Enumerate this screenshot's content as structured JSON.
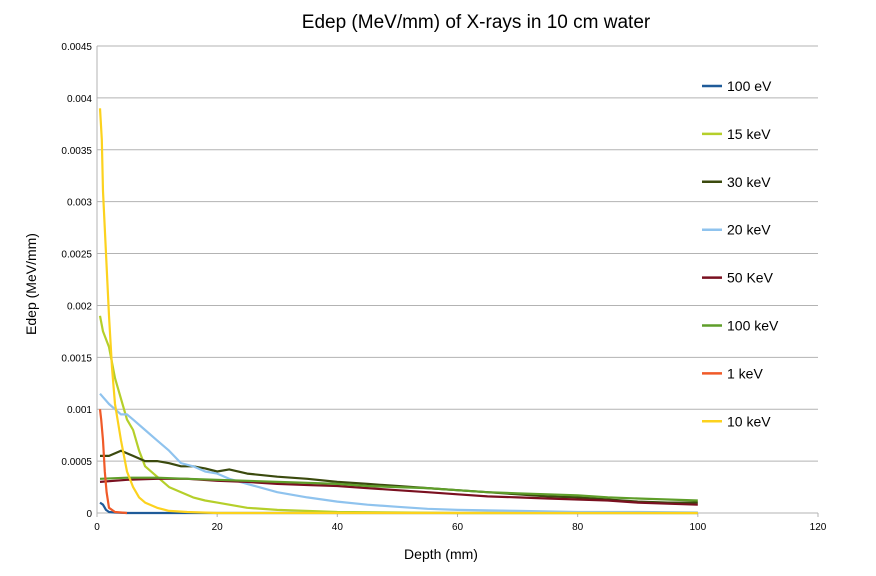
{
  "chart_data": {
    "type": "line",
    "title": "Edep (MeV/mm) of X-rays in 10 cm water",
    "xlabel": "Depth (mm)",
    "ylabel": "Edep (MeV/mm)",
    "xlim": [
      0,
      120
    ],
    "ylim": [
      0,
      0.0045
    ],
    "x_ticks": [
      "0",
      "20",
      "40",
      "60",
      "80",
      "100",
      "120"
    ],
    "y_ticks": [
      "0",
      "0.0005",
      "0.001",
      "0.0015",
      "0.002",
      "0.0025",
      "0.003",
      "0.0035",
      "0.004",
      "0.0045"
    ],
    "grid": "horizontal",
    "legend_position": "right",
    "series": [
      {
        "name": "100 eV",
        "color": "#1f5b99",
        "x": [
          0.5,
          1,
          1.5,
          2,
          3,
          5,
          10,
          20,
          40,
          60,
          80,
          100
        ],
        "y": [
          0.0001,
          8e-05,
          3e-05,
          1e-05,
          5e-06,
          0,
          0,
          0,
          0,
          0,
          0,
          0
        ]
      },
      {
        "name": "15 keV",
        "color": "#b5cf2a",
        "x": [
          0.5,
          1,
          2,
          3,
          4,
          5,
          6,
          7,
          8,
          10,
          12,
          14,
          16,
          18,
          20,
          25,
          30,
          40,
          50,
          60,
          80,
          100
        ],
        "y": [
          0.0019,
          0.00175,
          0.0016,
          0.0013,
          0.0011,
          0.0009,
          0.0008,
          0.0006,
          0.00045,
          0.00035,
          0.00025,
          0.0002,
          0.00015,
          0.00012,
          0.0001,
          5e-05,
          3e-05,
          1e-05,
          5e-06,
          0,
          0,
          0
        ]
      },
      {
        "name": "30 keV",
        "color": "#3b4a0e",
        "x": [
          0.5,
          2,
          4,
          6,
          8,
          10,
          12,
          14,
          16,
          18,
          20,
          22,
          25,
          30,
          35,
          40,
          45,
          50,
          55,
          60,
          65,
          70,
          75,
          80,
          85,
          90,
          95,
          100
        ],
        "y": [
          0.00055,
          0.00055,
          0.0006,
          0.00055,
          0.0005,
          0.0005,
          0.00048,
          0.00045,
          0.00045,
          0.00043,
          0.0004,
          0.00042,
          0.00038,
          0.00035,
          0.00033,
          0.0003,
          0.00028,
          0.00026,
          0.00024,
          0.00022,
          0.0002,
          0.00018,
          0.00016,
          0.00015,
          0.00013,
          0.00011,
          0.0001,
          0.0001
        ]
      },
      {
        "name": "20 keV",
        "color": "#8fc3ee",
        "x": [
          0.5,
          2,
          4,
          5,
          6,
          8,
          10,
          12,
          14,
          16,
          18,
          20,
          22,
          25,
          30,
          35,
          40,
          45,
          50,
          55,
          60,
          70,
          80,
          90,
          100
        ],
        "y": [
          0.00115,
          0.00105,
          0.00095,
          0.00095,
          0.0009,
          0.0008,
          0.0007,
          0.0006,
          0.00048,
          0.00045,
          0.0004,
          0.00038,
          0.00033,
          0.00028,
          0.0002,
          0.00015,
          0.00011,
          8e-05,
          6e-05,
          4e-05,
          3e-05,
          2e-05,
          1e-05,
          1e-05,
          5e-06
        ]
      },
      {
        "name": "50 KeV",
        "color": "#7a1020",
        "x": [
          0.5,
          5,
          10,
          15,
          20,
          25,
          30,
          35,
          40,
          45,
          50,
          55,
          60,
          65,
          70,
          75,
          80,
          85,
          90,
          95,
          100
        ],
        "y": [
          0.0003,
          0.00032,
          0.00033,
          0.00033,
          0.00031,
          0.0003,
          0.00028,
          0.00027,
          0.00026,
          0.00024,
          0.00022,
          0.0002,
          0.00018,
          0.00016,
          0.00015,
          0.00014,
          0.00013,
          0.00012,
          0.0001,
          9e-05,
          8e-05
        ]
      },
      {
        "name": "100 keV",
        "color": "#5f9e2a",
        "x": [
          0.5,
          5,
          10,
          15,
          20,
          25,
          30,
          35,
          40,
          45,
          50,
          55,
          60,
          65,
          70,
          75,
          80,
          85,
          90,
          95,
          100
        ],
        "y": [
          0.00033,
          0.00034,
          0.00034,
          0.00033,
          0.00032,
          0.00031,
          0.0003,
          0.00029,
          0.00028,
          0.00026,
          0.00025,
          0.00024,
          0.00022,
          0.0002,
          0.00019,
          0.00018,
          0.00017,
          0.00015,
          0.00014,
          0.00013,
          0.00012
        ]
      },
      {
        "name": "1 keV",
        "color": "#f05a28",
        "x": [
          0.5,
          0.7,
          1,
          1.3,
          1.6,
          2,
          3,
          5
        ],
        "y": [
          0.001,
          0.0009,
          0.0007,
          0.0004,
          0.0002,
          5e-05,
          1e-05,
          0
        ]
      },
      {
        "name": "10 keV",
        "color": "#fcd21e",
        "x": [
          0.5,
          0.8,
          1,
          1.5,
          2,
          2.5,
          3,
          4,
          5,
          6,
          7,
          8,
          10,
          12,
          15,
          20,
          100
        ],
        "y": [
          0.0039,
          0.0036,
          0.0031,
          0.0025,
          0.0019,
          0.0014,
          0.00105,
          0.0007,
          0.0004,
          0.00025,
          0.00015,
          0.0001,
          5e-05,
          2e-05,
          1e-05,
          0,
          0
        ]
      }
    ]
  }
}
